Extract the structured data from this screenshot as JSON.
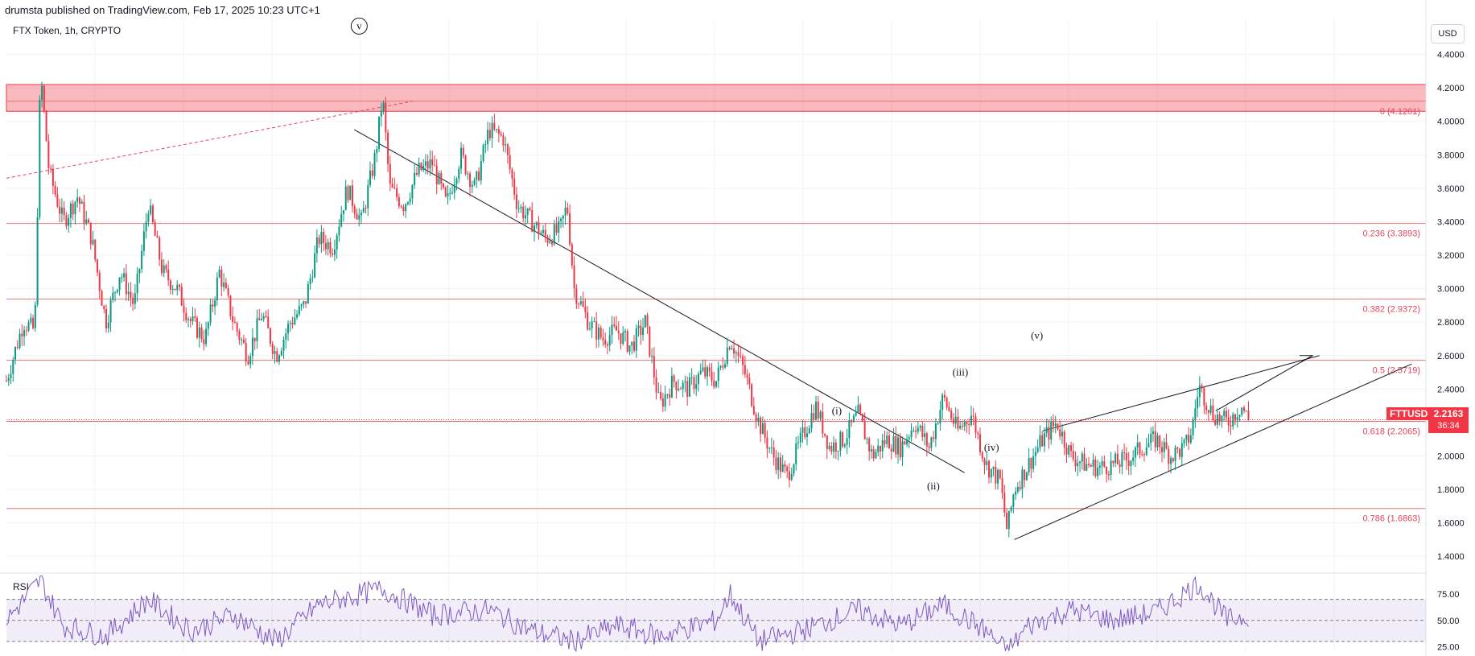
{
  "header": {
    "published": "drumsta published on TradingView.com, Feb 17, 2025 10:23 UTC+1"
  },
  "legend": {
    "title": "FTX Token, 1h, CRYPTO"
  },
  "currency": "USD",
  "price_scale": {
    "ticks": [
      "4.4000",
      "4.2000",
      "4.0000",
      "3.8000",
      "3.6000",
      "3.4000",
      "3.2000",
      "3.0000",
      "2.8000",
      "2.6000",
      "2.4000",
      "2.2000",
      "2.0000",
      "1.8000",
      "1.6000",
      "1.4000"
    ]
  },
  "last_price": {
    "symbol": "FTTUSD",
    "value": "2.2163",
    "countdown": "36:34",
    "price": 2.2163
  },
  "rsi": {
    "label": "RSI",
    "ticks": [
      "75.00",
      "50.00",
      "25.00"
    ],
    "upper": 70,
    "lower": 30,
    "mid": 50
  },
  "chart_data": {
    "type": "candlestick",
    "title": "FTX Token, 1h, CRYPTO",
    "ylim": [
      1.3,
      4.6
    ],
    "fib_levels": [
      {
        "ratio": "0",
        "price": 4.1201,
        "label": "0 (4.1201)"
      },
      {
        "ratio": "0.236",
        "price": 3.3893,
        "label": "0.236 (3.3893)"
      },
      {
        "ratio": "0.382",
        "price": 2.9372,
        "label": "0.382 (2.9372)"
      },
      {
        "ratio": "0.5",
        "price": 2.5719,
        "label": "0.5 (2.5719)"
      },
      {
        "ratio": "0.618",
        "price": 2.2065,
        "label": "0.618 (2.2065)"
      },
      {
        "ratio": "0.786",
        "price": 1.6863,
        "label": "0.786 (1.6863)"
      }
    ],
    "resistance_zone": {
      "from": 4.06,
      "to": 4.22
    },
    "wave_labels": [
      "v",
      "(i)",
      "(ii)",
      "(iii)",
      "(iv)",
      "(v)"
    ],
    "price_path": [
      [
        0,
        2.45
      ],
      [
        0.012,
        2.8
      ],
      [
        0.02,
        2.75
      ],
      [
        0.024,
        4.3
      ],
      [
        0.03,
        3.7
      ],
      [
        0.04,
        3.4
      ],
      [
        0.05,
        3.55
      ],
      [
        0.06,
        3.3
      ],
      [
        0.07,
        2.8
      ],
      [
        0.08,
        3.1
      ],
      [
        0.09,
        2.9
      ],
      [
        0.1,
        3.5
      ],
      [
        0.11,
        3.1
      ],
      [
        0.12,
        3.0
      ],
      [
        0.13,
        2.8
      ],
      [
        0.14,
        2.7
      ],
      [
        0.15,
        3.1
      ],
      [
        0.16,
        2.8
      ],
      [
        0.17,
        2.6
      ],
      [
        0.18,
        2.85
      ],
      [
        0.19,
        2.6
      ],
      [
        0.2,
        2.8
      ],
      [
        0.21,
        2.9
      ],
      [
        0.22,
        3.3
      ],
      [
        0.23,
        3.25
      ],
      [
        0.24,
        3.6
      ],
      [
        0.25,
        3.4
      ],
      [
        0.26,
        3.8
      ],
      [
        0.265,
        4.15
      ],
      [
        0.27,
        3.6
      ],
      [
        0.28,
        3.5
      ],
      [
        0.29,
        3.7
      ],
      [
        0.3,
        3.75
      ],
      [
        0.31,
        3.5
      ],
      [
        0.32,
        3.8
      ],
      [
        0.33,
        3.6
      ],
      [
        0.34,
        3.95
      ],
      [
        0.35,
        3.9
      ],
      [
        0.36,
        3.5
      ],
      [
        0.37,
        3.4
      ],
      [
        0.38,
        3.3
      ],
      [
        0.39,
        3.35
      ],
      [
        0.395,
        3.5
      ],
      [
        0.4,
        3.0
      ],
      [
        0.41,
        2.8
      ],
      [
        0.42,
        2.7
      ],
      [
        0.43,
        2.75
      ],
      [
        0.44,
        2.65
      ],
      [
        0.45,
        2.8
      ],
      [
        0.46,
        2.3
      ],
      [
        0.47,
        2.45
      ],
      [
        0.48,
        2.4
      ],
      [
        0.49,
        2.5
      ],
      [
        0.5,
        2.45
      ],
      [
        0.51,
        2.7
      ],
      [
        0.52,
        2.5
      ],
      [
        0.53,
        2.2
      ],
      [
        0.54,
        2.0
      ],
      [
        0.55,
        1.88
      ],
      [
        0.56,
        2.1
      ],
      [
        0.57,
        2.3
      ],
      [
        0.58,
        2.05
      ],
      [
        0.59,
        2.1
      ],
      [
        0.6,
        2.25
      ],
      [
        0.61,
        2.0
      ],
      [
        0.62,
        2.1
      ],
      [
        0.63,
        2.05
      ],
      [
        0.64,
        2.2
      ],
      [
        0.65,
        2.05
      ],
      [
        0.66,
        2.35
      ],
      [
        0.67,
        2.15
      ],
      [
        0.68,
        2.25
      ],
      [
        0.69,
        1.95
      ],
      [
        0.7,
        1.85
      ],
      [
        0.705,
        1.55
      ],
      [
        0.71,
        1.8
      ],
      [
        0.72,
        1.95
      ],
      [
        0.73,
        2.1
      ],
      [
        0.74,
        2.2
      ],
      [
        0.75,
        2.0
      ],
      [
        0.76,
        1.95
      ],
      [
        0.77,
        1.93
      ],
      [
        0.78,
        1.95
      ],
      [
        0.79,
        1.98
      ],
      [
        0.8,
        2.05
      ],
      [
        0.81,
        2.1
      ],
      [
        0.82,
        2.0
      ],
      [
        0.83,
        2.05
      ],
      [
        0.835,
        2.15
      ],
      [
        0.84,
        2.42
      ],
      [
        0.85,
        2.25
      ],
      [
        0.86,
        2.2
      ],
      [
        0.87,
        2.3
      ],
      [
        0.875,
        2.22
      ]
    ],
    "rsi_path": [
      [
        0,
        50
      ],
      [
        0.024,
        88
      ],
      [
        0.04,
        45
      ],
      [
        0.07,
        35
      ],
      [
        0.1,
        70
      ],
      [
        0.13,
        40
      ],
      [
        0.16,
        55
      ],
      [
        0.19,
        30
      ],
      [
        0.22,
        65
      ],
      [
        0.265,
        80
      ],
      [
        0.3,
        55
      ],
      [
        0.34,
        60
      ],
      [
        0.37,
        40
      ],
      [
        0.4,
        30
      ],
      [
        0.43,
        45
      ],
      [
        0.46,
        35
      ],
      [
        0.5,
        50
      ],
      [
        0.51,
        75
      ],
      [
        0.53,
        30
      ],
      [
        0.56,
        40
      ],
      [
        0.6,
        60
      ],
      [
        0.63,
        45
      ],
      [
        0.66,
        65
      ],
      [
        0.69,
        40
      ],
      [
        0.705,
        20
      ],
      [
        0.72,
        45
      ],
      [
        0.75,
        60
      ],
      [
        0.78,
        50
      ],
      [
        0.81,
        58
      ],
      [
        0.84,
        85
      ],
      [
        0.86,
        50
      ],
      [
        0.875,
        55
      ]
    ]
  }
}
